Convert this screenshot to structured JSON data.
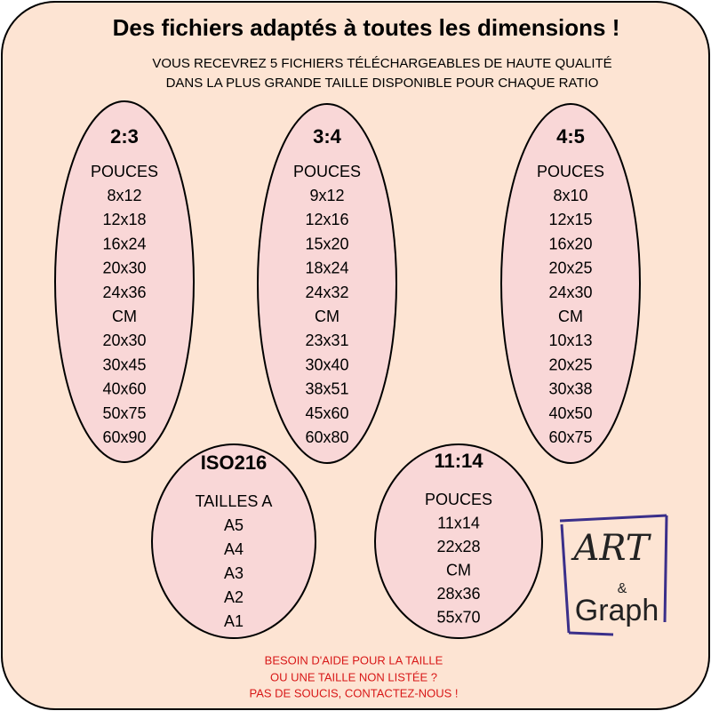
{
  "header": {
    "title": "Des fichiers adaptés à toutes les dimensions !",
    "subtitle": [
      "VOUS RECEVREZ 5 FICHIERS TÉLÉCHARGEABLES DE HAUTE QUALITÉ",
      "DANS LA PLUS GRANDE TAILLE DISPONIBLE POUR CHAQUE RATIO"
    ]
  },
  "ratios": [
    {
      "heading": "2:3",
      "items": [
        "POUCES",
        "8x12",
        "12x18",
        "16x24",
        "20x30",
        "24x36",
        "CM",
        "20x30",
        "30x45",
        "40x60",
        "50x75",
        "60x90"
      ]
    },
    {
      "heading": "3:4",
      "items": [
        "POUCES",
        "9x12",
        "12x16",
        "15x20",
        "18x24",
        "24x32",
        "CM",
        "23x31",
        "30x40",
        "38x51",
        "45x60",
        "60x80"
      ]
    },
    {
      "heading": "4:5",
      "items": [
        "POUCES",
        "8x10",
        "12x15",
        "16x20",
        "20x25",
        "24x30",
        "CM",
        "10x13",
        "20x25",
        "30x38",
        "40x50",
        "60x75"
      ]
    },
    {
      "heading": "ISO216",
      "items": [
        "TAILLES A",
        "A5",
        "A4",
        "A3",
        "A2",
        "A1"
      ]
    },
    {
      "heading": "11:14",
      "items": [
        "POUCES",
        "11x14",
        "22x28",
        "CM",
        "28x36",
        "55x70"
      ]
    }
  ],
  "footer": [
    "BESOIN D'AIDE POUR LA TAILLE",
    "OU UNE TAILLE NON LISTÉE ?",
    "PAS DE SOUCIS, CONTACTEZ-NOUS !"
  ],
  "logo": {
    "top": "ART",
    "amp": "&",
    "bottom": "Graph"
  }
}
